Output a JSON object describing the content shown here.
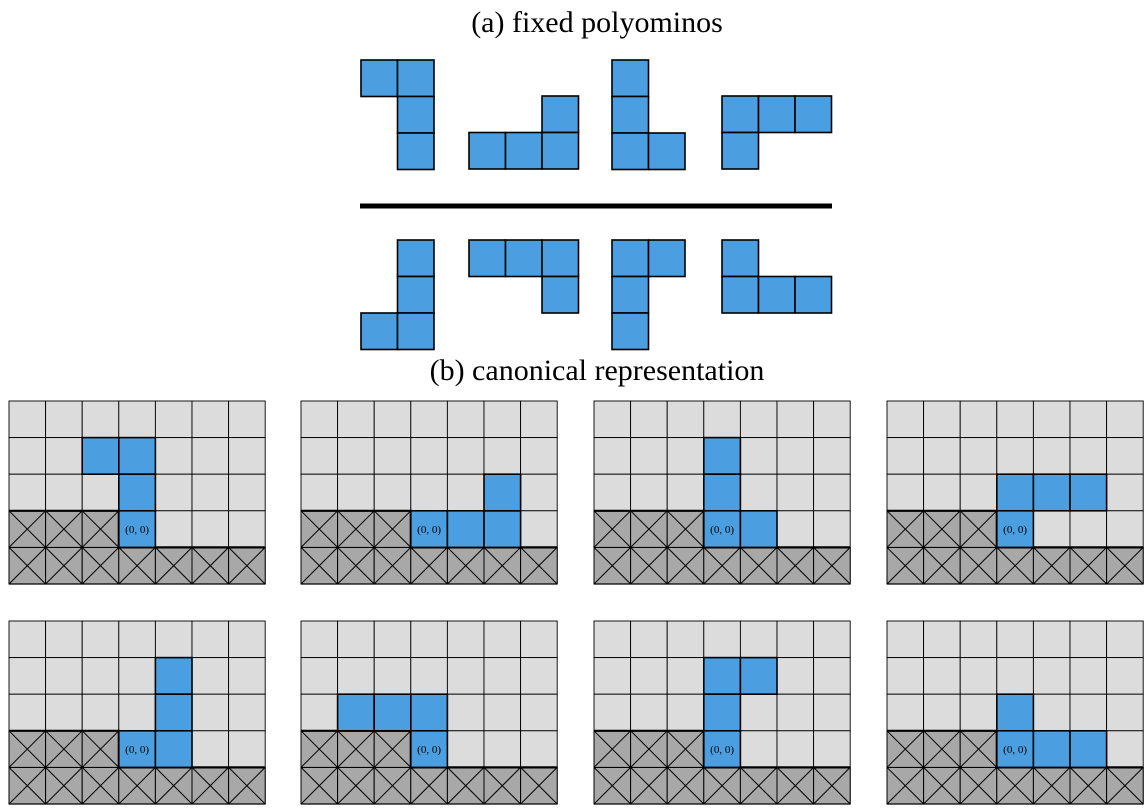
{
  "captions": {
    "a": "(a) fixed polyominos",
    "b": "(b) canonical representation"
  },
  "origin_label": "(0, 0)",
  "colors": {
    "cell_fill": "#4b9fe1",
    "grid_bg": "#dcdcdc",
    "blocked": "#a8a8a8",
    "line": "#000000"
  },
  "fixed_polyominos": [
    [
      [
        0,
        0
      ],
      [
        1,
        0
      ],
      [
        1,
        1
      ],
      [
        1,
        2
      ]
    ],
    [
      [
        2,
        0
      ],
      [
        0,
        1
      ],
      [
        1,
        1
      ],
      [
        2,
        1
      ]
    ],
    [
      [
        0,
        0
      ],
      [
        0,
        1
      ],
      [
        0,
        2
      ],
      [
        1,
        2
      ]
    ],
    [
      [
        0,
        0
      ],
      [
        1,
        0
      ],
      [
        2,
        0
      ],
      [
        0,
        1
      ]
    ],
    [
      [
        1,
        0
      ],
      [
        1,
        1
      ],
      [
        0,
        2
      ],
      [
        1,
        2
      ]
    ],
    [
      [
        0,
        0
      ],
      [
        1,
        0
      ],
      [
        2,
        0
      ],
      [
        2,
        1
      ]
    ],
    [
      [
        0,
        0
      ],
      [
        1,
        0
      ],
      [
        0,
        1
      ],
      [
        0,
        2
      ]
    ],
    [
      [
        0,
        0
      ],
      [
        0,
        1
      ],
      [
        1,
        1
      ],
      [
        2,
        1
      ]
    ]
  ],
  "canonical_boards": [
    {
      "polyomino": [
        [
          -1,
          3
        ],
        [
          0,
          3
        ],
        [
          0,
          2
        ],
        [
          0,
          1
        ]
      ],
      "blocked_row1_cols": 3
    },
    {
      "polyomino": [
        [
          0,
          1
        ],
        [
          1,
          1
        ],
        [
          2,
          1
        ],
        [
          2,
          2
        ]
      ],
      "blocked_row1_cols": 3
    },
    {
      "polyomino": [
        [
          0,
          3
        ],
        [
          0,
          2
        ],
        [
          0,
          1
        ],
        [
          1,
          1
        ]
      ],
      "blocked_row1_cols": 3
    },
    {
      "polyomino": [
        [
          0,
          2
        ],
        [
          1,
          2
        ],
        [
          2,
          2
        ],
        [
          0,
          1
        ]
      ],
      "blocked_row1_cols": 3
    },
    {
      "polyomino": [
        [
          1,
          3
        ],
        [
          1,
          2
        ],
        [
          0,
          1
        ],
        [
          1,
          1
        ]
      ],
      "blocked_row1_cols": 3
    },
    {
      "polyomino": [
        [
          -2,
          2
        ],
        [
          -1,
          2
        ],
        [
          0,
          2
        ],
        [
          0,
          1
        ]
      ],
      "blocked_row1_cols": 3
    },
    {
      "polyomino": [
        [
          0,
          3
        ],
        [
          1,
          3
        ],
        [
          0,
          2
        ],
        [
          0,
          1
        ]
      ],
      "blocked_row1_cols": 3
    },
    {
      "polyomino": [
        [
          0,
          2
        ],
        [
          0,
          1
        ],
        [
          1,
          1
        ],
        [
          2,
          1
        ]
      ],
      "blocked_row1_cols": 3
    }
  ],
  "board_size": {
    "cols": 7,
    "rows": 5,
    "origin_col": 3
  }
}
